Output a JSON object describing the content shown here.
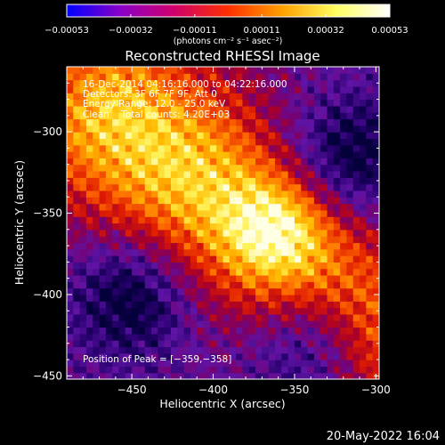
{
  "chart_data": {
    "type": "heatmap",
    "title": "Reconstructed RHESSI Image",
    "xlabel": "Heliocentric X (arcsec)",
    "ylabel": "Heliocentric Y (arcsec)",
    "xlim": [
      -490,
      -298
    ],
    "ylim": [
      -452,
      -260
    ],
    "x_ticks": [
      -450,
      -400,
      -350,
      -300
    ],
    "y_ticks": [
      -300,
      -350,
      -400,
      -450
    ],
    "x_tick_labels": [
      "−450",
      "−400",
      "−350",
      "−300"
    ],
    "y_tick_labels": [
      "−300",
      "−350",
      "−400",
      "−450"
    ],
    "colorbar": {
      "min": -0.00053,
      "max": 0.00053,
      "tick_values": [
        -0.00053,
        -0.00032,
        -0.00011,
        0.00011,
        0.00032,
        0.00053
      ],
      "tick_labels": [
        "−0.00053",
        "−0.00032",
        "−0.00011",
        "0.00011",
        "0.00032",
        "0.00053"
      ],
      "unit_text": "(photons cm⁻² s⁻¹ asec⁻²)",
      "colors": [
        "#0000ff",
        "#8a00c8",
        "#d0006a",
        "#ff3000",
        "#ffa000",
        "#ffff60",
        "#ffffff"
      ]
    },
    "annotations": [
      "16-Dec-2014 04:16:16.000 to 04:22:16.000",
      "Detectors: 3F 6F 7F 9F, Att 0",
      "Energy Range: 12.0 - 25.0 keV",
      "Clean    Total counts: 4.20E+03"
    ],
    "peak_label": "Position of Peak = [−359,−358]",
    "peak": [
      -359,
      -358
    ],
    "intensity_structure": {
      "ridge_from": [
        -460,
        -290
      ],
      "ridge_to": [
        -300,
        -420
      ],
      "negative_regions": [
        [
          -318,
          -318
        ],
        [
          -450,
          -400
        ],
        [
          -340,
          -430
        ]
      ]
    }
  },
  "footer": {
    "timestamp": "20-May-2022 16:04"
  },
  "colors": {
    "background": "#000000",
    "text": "#ffffff"
  }
}
